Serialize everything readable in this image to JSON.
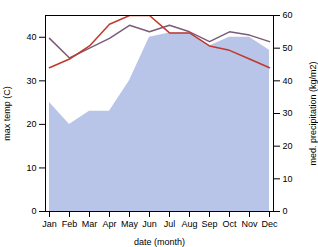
{
  "chart_data": {
    "type": "line",
    "xlabel": "date (month)",
    "ylabel": "max temp (C)",
    "y2label": "med. precipitation (kg/m2)",
    "categories": [
      "Jan",
      "Feb",
      "Mar",
      "Apr",
      "May",
      "Jun",
      "Jul",
      "Aug",
      "Sep",
      "Oct",
      "Nov",
      "Dec"
    ],
    "series": [
      {
        "type": "area",
        "color": "#b8c4e8",
        "values": [
          25,
          20,
          23,
          23,
          30,
          40,
          41,
          41,
          38,
          40,
          40,
          37
        ]
      },
      {
        "type": "line",
        "color": "#7b5c78",
        "axis": "y2",
        "values": [
          53,
          47,
          50,
          53,
          57,
          55,
          57,
          55,
          52,
          55,
          54,
          52
        ]
      },
      {
        "type": "line",
        "color": "#c0392b",
        "values": [
          33,
          35,
          38,
          43,
          45,
          45,
          41,
          41,
          38,
          37,
          35,
          33
        ]
      }
    ],
    "ylim": [
      0,
      45
    ],
    "yticks": [
      0,
      10,
      20,
      30,
      40
    ],
    "y2lim": [
      0,
      60
    ],
    "y2ticks": [
      0,
      10,
      20,
      30,
      40,
      50,
      60
    ]
  }
}
